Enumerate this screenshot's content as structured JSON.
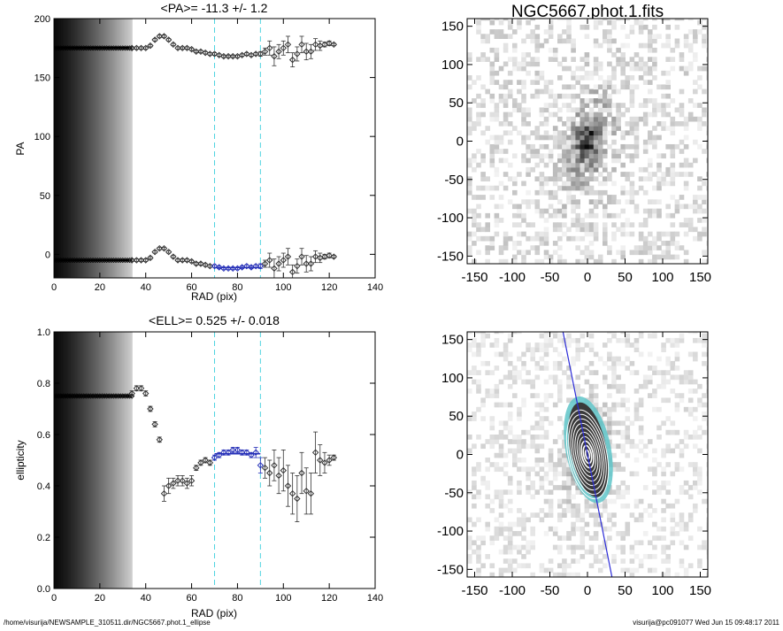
{
  "footer": {
    "left": "/home/visurija/NEWSAMPLE_310511.dir/NGC5667.phot.1_ellipse",
    "right": "visurija@pc091077  Wed Jun 15 09:48:17 2011"
  },
  "chart_data": [
    {
      "id": "pa",
      "type": "scatter",
      "title": "<PA>= -11.3 +/-   1.2",
      "xlabel": "RAD (pix)",
      "ylabel": "PA",
      "xlim": [
        0,
        140
      ],
      "ylim": [
        -20,
        200
      ],
      "xticks": [
        0,
        20,
        40,
        60,
        80,
        100,
        120,
        140
      ],
      "yticks": [
        0,
        50,
        100,
        150,
        200
      ],
      "shaded_region": [
        0,
        34
      ],
      "vlines": [
        70,
        90
      ],
      "mean_value": -11.3,
      "mean_error": 1.2,
      "series": [
        {
          "x": [
            34,
            36,
            38,
            40,
            42,
            44,
            46,
            48,
            50,
            52,
            54,
            56,
            58,
            60,
            62,
            64,
            66,
            68,
            70,
            72,
            74,
            76,
            78,
            80,
            82,
            84,
            86,
            88,
            90,
            92,
            94,
            96,
            98,
            100,
            102,
            104,
            106,
            108,
            110,
            112,
            114,
            116,
            118,
            120,
            122
          ],
          "y": [
            -5,
            -5,
            -5,
            -5,
            -3,
            2,
            5,
            5,
            2,
            -2,
            -5,
            -5,
            -5,
            -6,
            -8,
            -8,
            -9,
            -10,
            -10,
            -11,
            -12,
            -12,
            -12,
            -12,
            -11,
            -10,
            -11,
            -10,
            -10,
            -8,
            -5,
            -12,
            -8,
            -5,
            -2,
            -15,
            -10,
            -2,
            -8,
            -8,
            -2,
            -3,
            -2,
            -1,
            -2
          ],
          "err": [
            1,
            1,
            1,
            1,
            1,
            1,
            1,
            1,
            1,
            1,
            1,
            1,
            1,
            1,
            1,
            1,
            1,
            1,
            1,
            1,
            1,
            1,
            1,
            1,
            1,
            1,
            1,
            1,
            2,
            3,
            6,
            8,
            6,
            6,
            7,
            6,
            6,
            7,
            7,
            6,
            5,
            4,
            2,
            2,
            1
          ]
        }
      ]
    },
    {
      "id": "ell",
      "type": "scatter",
      "title": "<ELL>= 0.525 +/-  0.018",
      "xlabel": "RAD (pix)",
      "ylabel": "ellipticity",
      "xlim": [
        0,
        140
      ],
      "ylim": [
        0.0,
        1.0
      ],
      "xticks": [
        0,
        20,
        40,
        60,
        80,
        100,
        120,
        140
      ],
      "yticks": [
        0.0,
        0.2,
        0.4,
        0.6,
        0.8,
        1.0
      ],
      "shaded_region": [
        0,
        34
      ],
      "vlines": [
        70,
        90
      ],
      "mean_value": 0.525,
      "mean_error": 0.018,
      "series": [
        {
          "x": [
            34,
            36,
            38,
            40,
            42,
            44,
            46,
            48,
            50,
            52,
            54,
            56,
            58,
            60,
            62,
            64,
            66,
            68,
            70,
            72,
            74,
            76,
            78,
            80,
            82,
            84,
            86,
            88,
            90,
            92,
            94,
            96,
            98,
            100,
            102,
            104,
            106,
            108,
            110,
            112,
            114,
            116,
            118,
            120,
            122
          ],
          "y": [
            0.76,
            0.78,
            0.78,
            0.76,
            0.7,
            0.64,
            0.58,
            0.37,
            0.4,
            0.41,
            0.42,
            0.42,
            0.41,
            0.42,
            0.47,
            0.49,
            0.5,
            0.49,
            0.51,
            0.52,
            0.53,
            0.53,
            0.54,
            0.54,
            0.53,
            0.53,
            0.52,
            0.53,
            0.48,
            0.47,
            0.45,
            0.48,
            0.44,
            0.46,
            0.4,
            0.37,
            0.35,
            0.45,
            0.38,
            0.37,
            0.53,
            0.5,
            0.49,
            0.5,
            0.51
          ],
          "err": [
            0.01,
            0.01,
            0.01,
            0.01,
            0.01,
            0.01,
            0.01,
            0.03,
            0.03,
            0.02,
            0.02,
            0.02,
            0.02,
            0.02,
            0.01,
            0.01,
            0.01,
            0.01,
            0.01,
            0.01,
            0.01,
            0.01,
            0.01,
            0.01,
            0.01,
            0.01,
            0.01,
            0.02,
            0.03,
            0.04,
            0.05,
            0.06,
            0.07,
            0.08,
            0.08,
            0.08,
            0.09,
            0.08,
            0.09,
            0.08,
            0.08,
            0.06,
            0.04,
            0.02,
            0.01
          ]
        }
      ]
    },
    {
      "id": "img1",
      "type": "heatmap",
      "title": "NGC5667.phot.1.fits",
      "xlim": [
        -160,
        160
      ],
      "ylim": [
        -160,
        160
      ],
      "xticks": [
        -150,
        -100,
        -50,
        0,
        50,
        100,
        150
      ],
      "yticks": [
        -150,
        -100,
        -50,
        0,
        50,
        100,
        150
      ],
      "colormap": "gray-inverted",
      "galaxy_pa_deg": -11.3,
      "galaxy_ellipticity": 0.525
    },
    {
      "id": "img2",
      "type": "heatmap",
      "title": "",
      "xlim": [
        -160,
        160
      ],
      "ylim": [
        -160,
        160
      ],
      "xticks": [
        -150,
        -100,
        -50,
        0,
        50,
        100,
        150
      ],
      "yticks": [
        -150,
        -100,
        -50,
        0,
        50,
        100,
        150
      ],
      "colormap": "gray-inverted",
      "overlays": [
        "isophote-ellipses",
        "mask-region",
        "major-axis-line"
      ],
      "major_axis_color": "#2c2cd8",
      "mask_color": "#5fc6c9",
      "ellipse_color": "#ffffff"
    }
  ],
  "colors": {
    "axis": "#000000",
    "marker": "#333333",
    "highlight": "#2630b8",
    "vline": "#4fd4e0",
    "mask": "#5fc6c9",
    "axisline": "#2c2cd8"
  }
}
